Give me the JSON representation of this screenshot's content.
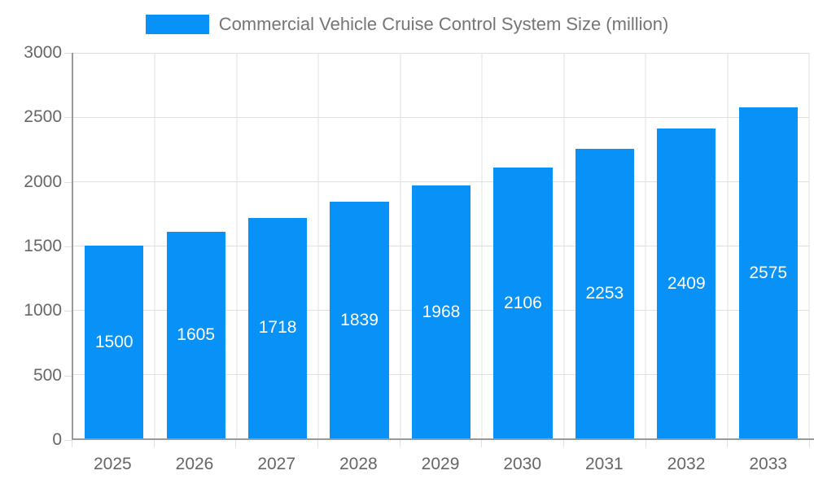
{
  "chart_data": {
    "type": "bar",
    "title": "Commercial Vehicle Cruise Control System Size (million)",
    "categories": [
      "2025",
      "2026",
      "2027",
      "2028",
      "2029",
      "2030",
      "2031",
      "2032",
      "2033"
    ],
    "values": [
      1500,
      1605,
      1718,
      1839,
      1968,
      2106,
      2253,
      2409,
      2575
    ],
    "xlabel": "",
    "ylabel": "",
    "ylim": [
      0,
      3000
    ],
    "y_ticks": [
      0,
      500,
      1000,
      1500,
      2000,
      2500,
      3000
    ],
    "grid": true,
    "legend_position": "top-center",
    "value_labels": "centered-inside-bars",
    "colors": {
      "bar": "#0892f8",
      "grid_line": "#e0e0e0",
      "axis_line": "#999999",
      "axis_label": "#666666",
      "value_label": "#ffffff",
      "legend_text": "#757575",
      "background": "#ffffff"
    }
  }
}
